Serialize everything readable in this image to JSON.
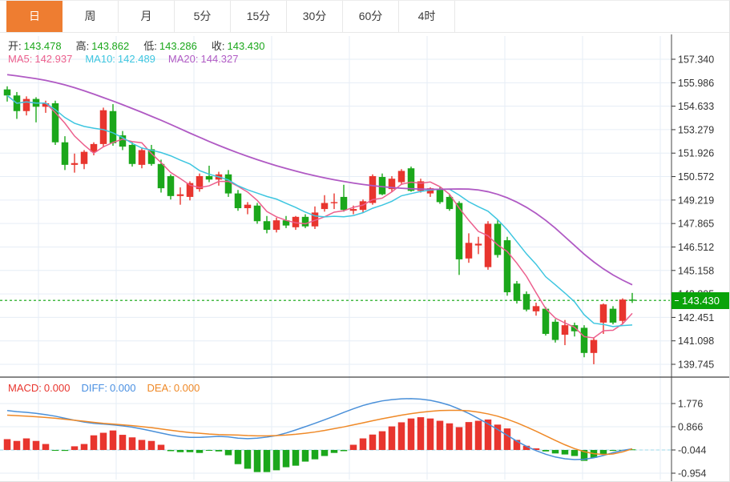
{
  "tab_bar": {
    "tabs": [
      {
        "label": "日",
        "active": true
      },
      {
        "label": "周",
        "active": false
      },
      {
        "label": "月",
        "active": false
      },
      {
        "label": "5分",
        "active": false
      },
      {
        "label": "15分",
        "active": false
      },
      {
        "label": "30分",
        "active": false
      },
      {
        "label": "60分",
        "active": false
      },
      {
        "label": "4时",
        "active": false
      }
    ]
  },
  "indicators": {
    "ohlc": {
      "open_label": "开:",
      "open": "143.478",
      "high_label": "高:",
      "high": "143.862",
      "low_label": "低:",
      "low": "143.286",
      "close_label": "收:",
      "close": "143.430"
    },
    "ma": {
      "ma5_label": "MA5:",
      "ma5": "142.937",
      "ma10_label": "MA10:",
      "ma10": "142.489",
      "ma20_label": "MA20:",
      "ma20": "144.327"
    },
    "macd": {
      "macd_label": "MACD:",
      "macd": "0.000",
      "diff_label": "DIFF:",
      "diff": "0.000",
      "dea_label": "DEA:",
      "dea": "0.000"
    }
  },
  "last_price_badge": "143.430",
  "colors": {
    "up": "#e8352e",
    "down": "#1ba71b",
    "ma5": "#ec5f8d",
    "ma10": "#3ec6e0",
    "ma20": "#b05ac4",
    "diff_line": "#4a90d9",
    "dea_line": "#ef8927",
    "accent_tab": "#ee7d31",
    "badge_bg": "#0aa30a",
    "grid": "#e6edf6",
    "axis": "#333333",
    "macd_zero_dash": "#9bd7e8"
  },
  "chart_data": {
    "type": "candlestick",
    "panels": [
      "price",
      "macd"
    ],
    "candle_color_up": "red",
    "candle_color_down": "green",
    "price_axis_ticks": [
      157.34,
      155.986,
      154.633,
      153.279,
      151.926,
      150.572,
      149.219,
      147.865,
      146.512,
      145.158,
      143.805,
      142.451,
      141.098,
      139.745
    ],
    "macd_axis_ticks": [
      1.776,
      0.866,
      -0.044,
      -0.954
    ],
    "last_price": 143.43,
    "last_ohlc": {
      "open": 143.478,
      "high": 143.862,
      "low": 143.286,
      "close": 143.43
    },
    "ma_values": {
      "ma5": 142.937,
      "ma10": 142.489,
      "ma20": 144.327
    },
    "candles": [
      [
        155.6,
        155.78,
        154.9,
        155.25
      ],
      [
        155.25,
        155.45,
        153.9,
        154.35
      ],
      [
        154.35,
        155.2,
        154.1,
        155.05
      ],
      [
        155.05,
        155.15,
        153.7,
        154.6
      ],
      [
        154.6,
        154.95,
        154.25,
        154.8
      ],
      [
        154.8,
        154.95,
        152.4,
        152.55
      ],
      [
        152.55,
        152.9,
        150.95,
        151.25
      ],
      [
        151.25,
        151.9,
        150.8,
        151.35
      ],
      [
        151.3,
        152.1,
        151.0,
        152.0
      ],
      [
        152.0,
        152.55,
        151.8,
        152.45
      ],
      [
        152.45,
        154.55,
        152.3,
        154.4
      ],
      [
        154.35,
        154.75,
        152.35,
        152.5
      ],
      [
        152.95,
        153.2,
        152.1,
        152.3
      ],
      [
        152.4,
        152.55,
        151.15,
        151.3
      ],
      [
        151.25,
        152.25,
        151.05,
        152.1
      ],
      [
        152.15,
        152.4,
        151.2,
        151.3
      ],
      [
        151.3,
        151.55,
        149.65,
        149.9
      ],
      [
        150.6,
        150.7,
        149.25,
        149.45
      ],
      [
        149.45,
        149.95,
        148.95,
        149.55
      ],
      [
        149.4,
        150.3,
        149.2,
        150.2
      ],
      [
        149.85,
        150.75,
        149.7,
        150.6
      ],
      [
        150.6,
        151.2,
        150.25,
        150.4
      ],
      [
        150.4,
        150.85,
        150.05,
        150.7
      ],
      [
        150.7,
        150.95,
        149.4,
        149.6
      ],
      [
        149.6,
        149.8,
        148.6,
        148.75
      ],
      [
        148.75,
        149.1,
        148.4,
        148.95
      ],
      [
        148.9,
        149.05,
        147.85,
        148.0
      ],
      [
        148.0,
        148.3,
        147.3,
        147.5
      ],
      [
        147.5,
        148.2,
        147.35,
        148.05
      ],
      [
        148.05,
        148.3,
        147.6,
        147.75
      ],
      [
        147.65,
        148.3,
        147.5,
        148.25
      ],
      [
        148.25,
        148.4,
        147.6,
        147.7
      ],
      [
        147.7,
        148.85,
        147.55,
        148.5
      ],
      [
        148.7,
        149.5,
        148.55,
        149.05
      ],
      [
        149.05,
        149.6,
        148.7,
        149.1
      ],
      [
        149.4,
        150.1,
        148.55,
        148.65
      ],
      [
        148.6,
        148.9,
        148.4,
        148.7
      ],
      [
        148.65,
        149.25,
        148.5,
        149.15
      ],
      [
        149.05,
        150.7,
        148.95,
        150.6
      ],
      [
        150.55,
        150.75,
        149.5,
        149.55
      ],
      [
        149.85,
        150.6,
        149.7,
        150.45
      ],
      [
        150.25,
        151.0,
        150.1,
        150.9
      ],
      [
        151.05,
        151.15,
        149.7,
        149.75
      ],
      [
        149.75,
        150.45,
        149.65,
        150.3
      ],
      [
        149.6,
        149.95,
        149.4,
        149.9
      ],
      [
        149.85,
        149.95,
        149.0,
        149.1
      ],
      [
        149.4,
        149.55,
        148.6,
        148.7
      ],
      [
        149.05,
        149.15,
        144.9,
        145.8
      ],
      [
        145.85,
        147.3,
        145.6,
        146.75
      ],
      [
        146.6,
        147.1,
        146.1,
        146.7
      ],
      [
        145.35,
        148.0,
        145.2,
        147.85
      ],
      [
        147.85,
        148.05,
        145.9,
        146.05
      ],
      [
        146.9,
        147.1,
        143.7,
        143.9
      ],
      [
        144.4,
        144.55,
        143.25,
        143.4
      ],
      [
        143.8,
        143.95,
        142.8,
        142.9
      ],
      [
        142.8,
        143.3,
        142.55,
        143.1
      ],
      [
        142.95,
        143.05,
        141.4,
        141.5
      ],
      [
        142.2,
        142.35,
        141.0,
        141.15
      ],
      [
        141.45,
        142.3,
        140.85,
        142.0
      ],
      [
        142.0,
        142.15,
        141.35,
        141.65
      ],
      [
        141.85,
        142.0,
        140.15,
        140.4
      ],
      [
        140.4,
        141.3,
        139.75,
        141.15
      ],
      [
        142.15,
        143.25,
        141.5,
        143.2
      ],
      [
        142.95,
        143.1,
        142.05,
        142.15
      ],
      [
        142.25,
        143.55,
        142.05,
        143.48
      ],
      [
        143.478,
        143.862,
        143.286,
        143.43
      ]
    ],
    "ma20": [
      156.45,
      156.38,
      156.3,
      156.22,
      156.12,
      156.0,
      155.86,
      155.7,
      155.52,
      155.33,
      155.13,
      154.93,
      154.72,
      154.5,
      154.28,
      154.05,
      153.82,
      153.58,
      153.33,
      153.08,
      152.84,
      152.6,
      152.37,
      152.15,
      151.94,
      151.74,
      151.55,
      151.37,
      151.2,
      151.04,
      150.89,
      150.75,
      150.62,
      150.5,
      150.39,
      150.29,
      150.2,
      150.12,
      150.05,
      149.99,
      149.94,
      149.9,
      149.87,
      149.85,
      149.84,
      149.84,
      149.85,
      149.86,
      149.85,
      149.8,
      149.7,
      149.55,
      149.35,
      149.1,
      148.8,
      148.45,
      148.05,
      147.6,
      147.1,
      146.6,
      146.1,
      145.65,
      145.25,
      144.9,
      144.6,
      144.33
    ],
    "macd": {
      "hist": [
        0.38,
        0.31,
        0.41,
        0.31,
        0.19,
        -0.06,
        -0.08,
        0.1,
        0.19,
        0.53,
        0.63,
        0.72,
        0.55,
        0.45,
        0.35,
        0.31,
        0.16,
        -0.09,
        -0.13,
        -0.13,
        -0.16,
        -0.06,
        -0.1,
        -0.25,
        -0.6,
        -0.78,
        -0.91,
        -0.91,
        -0.84,
        -0.72,
        -0.66,
        -0.5,
        -0.41,
        -0.28,
        -0.16,
        -0.09,
        0.16,
        0.41,
        0.56,
        0.69,
        0.88,
        1.04,
        1.19,
        1.24,
        1.19,
        1.1,
        1.0,
        0.85,
        1.05,
        1.1,
        1.15,
        0.95,
        0.8,
        0.35,
        0.12,
        0.02,
        -0.1,
        -0.18,
        -0.22,
        -0.28,
        -0.47,
        -0.35,
        -0.2,
        -0.08,
        -0.04,
        -0.02
      ],
      "diff": [
        1.5,
        1.46,
        1.43,
        1.39,
        1.34,
        1.28,
        1.2,
        1.12,
        1.05,
        1.0,
        0.97,
        0.94,
        0.9,
        0.85,
        0.78,
        0.7,
        0.62,
        0.54,
        0.48,
        0.45,
        0.45,
        0.47,
        0.49,
        0.47,
        0.42,
        0.4,
        0.42,
        0.46,
        0.52,
        0.62,
        0.74,
        0.87,
        1.0,
        1.14,
        1.28,
        1.43,
        1.57,
        1.7,
        1.8,
        1.88,
        1.93,
        1.96,
        1.97,
        1.95,
        1.9,
        1.82,
        1.71,
        1.56,
        1.39,
        1.19,
        0.98,
        0.76,
        0.53,
        0.3,
        0.1,
        -0.07,
        -0.21,
        -0.32,
        -0.39,
        -0.42,
        -0.41,
        -0.35,
        -0.26,
        -0.15,
        -0.06,
        0.0
      ],
      "dea": [
        1.32,
        1.3,
        1.28,
        1.26,
        1.23,
        1.2,
        1.16,
        1.12,
        1.08,
        1.04,
        1.0,
        0.97,
        0.94,
        0.91,
        0.87,
        0.83,
        0.78,
        0.73,
        0.68,
        0.64,
        0.61,
        0.58,
        0.56,
        0.55,
        0.54,
        0.52,
        0.51,
        0.51,
        0.52,
        0.54,
        0.57,
        0.61,
        0.66,
        0.72,
        0.79,
        0.86,
        0.94,
        1.02,
        1.1,
        1.18,
        1.25,
        1.32,
        1.38,
        1.43,
        1.47,
        1.5,
        1.51,
        1.51,
        1.49,
        1.44,
        1.37,
        1.28,
        1.16,
        1.02,
        0.86,
        0.69,
        0.51,
        0.33,
        0.16,
        0.01,
        -0.11,
        -0.19,
        -0.22,
        -0.2,
        -0.12,
        0.0
      ]
    }
  }
}
